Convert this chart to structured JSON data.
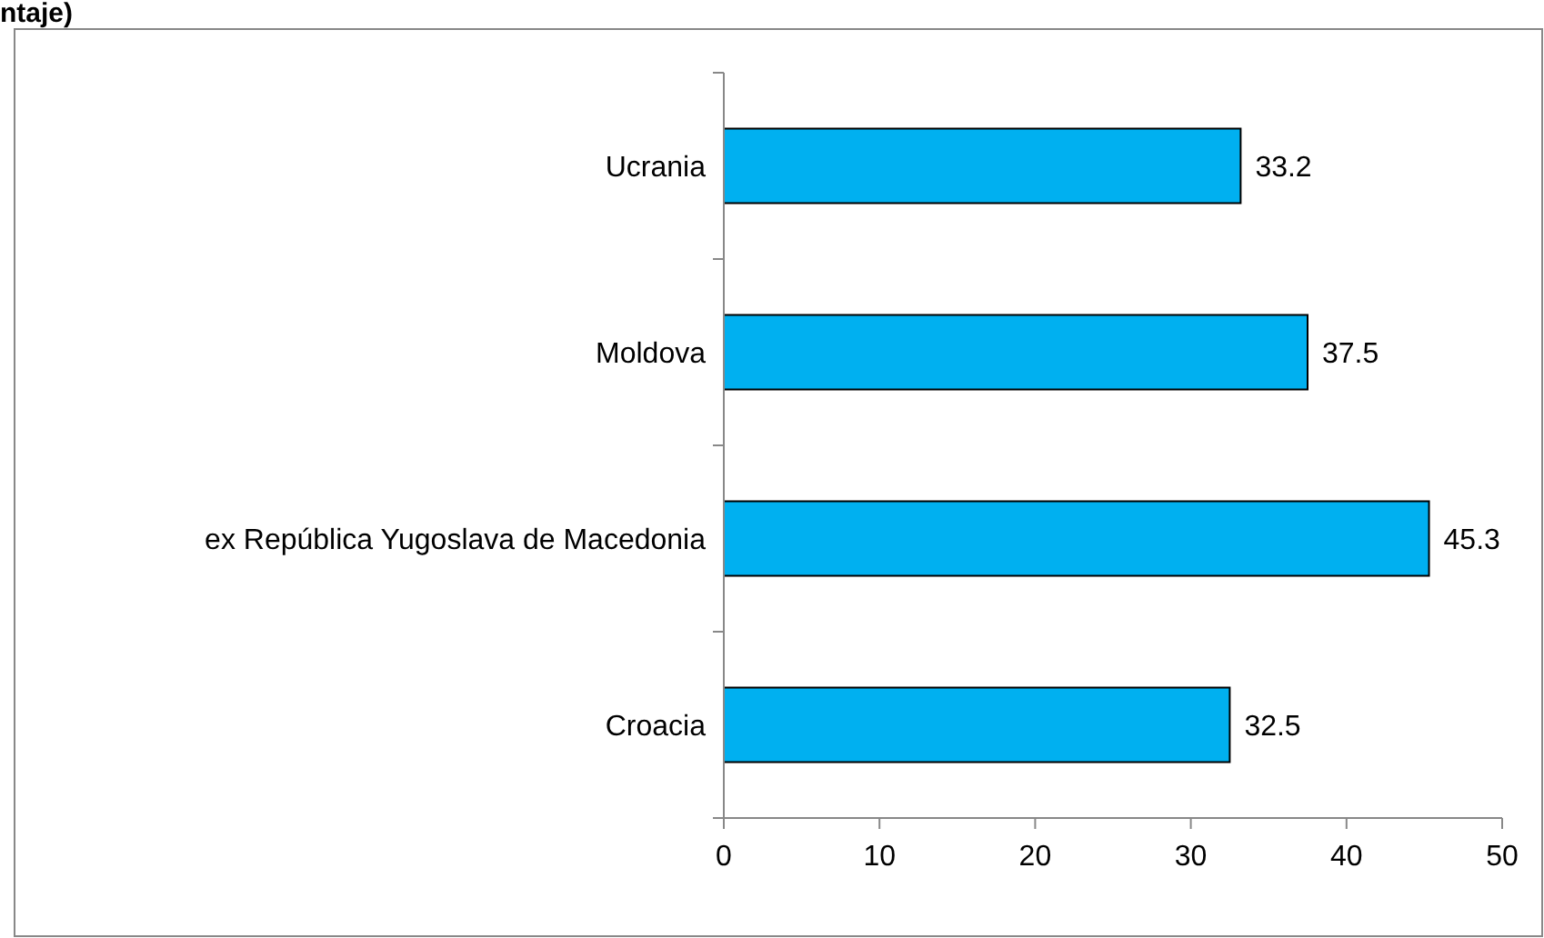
{
  "chart_data": {
    "type": "bar",
    "orientation": "horizontal",
    "title": "ntaje)",
    "categories": [
      "Ucrania",
      "Moldova",
      "ex República Yugoslava de Macedonia",
      "Croacia"
    ],
    "values": [
      33.2,
      37.5,
      45.3,
      32.5
    ],
    "color": "#00b0f0",
    "data_labels": true,
    "xlim": [
      0,
      50
    ],
    "xticks": [
      0,
      10,
      20,
      30,
      40,
      50
    ]
  }
}
